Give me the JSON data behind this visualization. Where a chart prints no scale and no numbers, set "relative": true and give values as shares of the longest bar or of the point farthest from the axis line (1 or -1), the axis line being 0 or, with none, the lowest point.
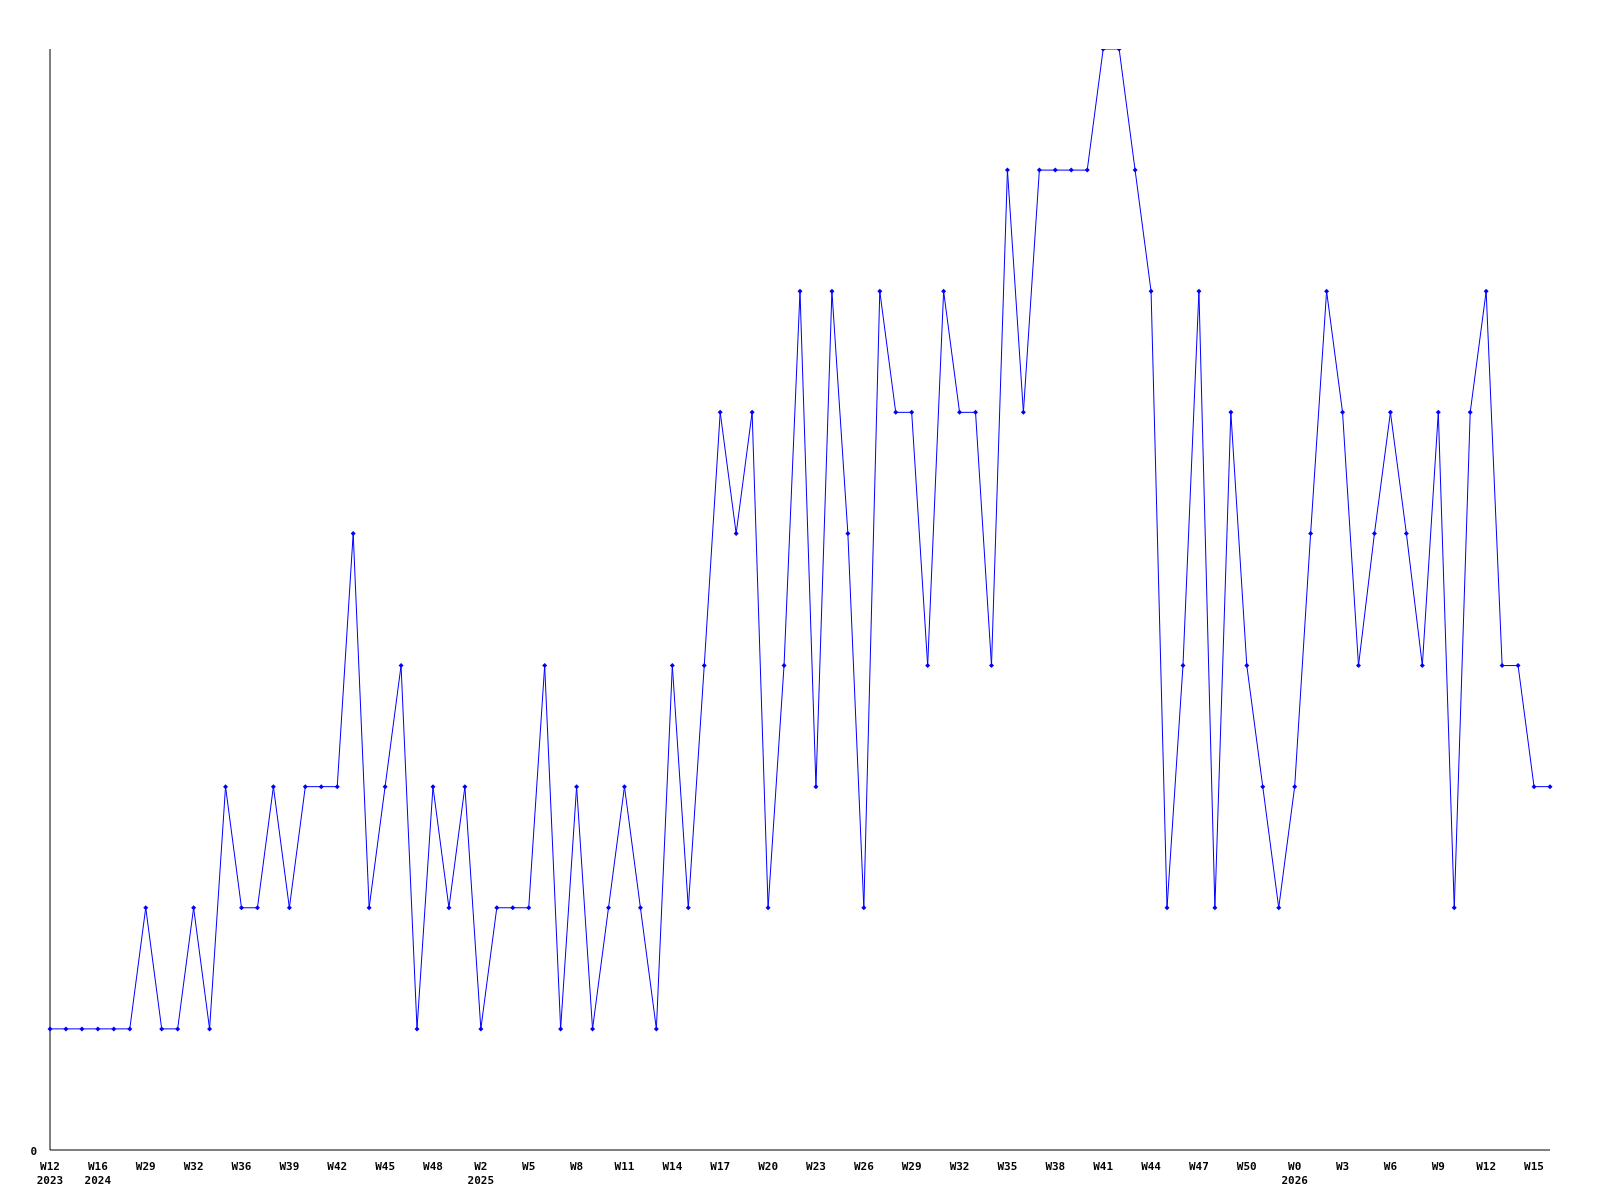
{
  "chart_data": {
    "type": "line",
    "relative": true,
    "marker": "diamond",
    "line_style": "solid",
    "grid": false,
    "legend": false,
    "annotations": [
      "0"
    ],
    "categories": [
      "W12 2023",
      null,
      null,
      "W16 2024",
      null,
      null,
      "W29",
      null,
      null,
      "W32",
      null,
      null,
      "W36",
      null,
      null,
      "W39",
      null,
      null,
      "W42",
      null,
      null,
      "W45",
      null,
      null,
      "W48",
      null,
      null,
      "W2 2025",
      null,
      null,
      "W5",
      null,
      null,
      "W8",
      null,
      null,
      "W11",
      null,
      null,
      "W14",
      null,
      null,
      "W17",
      null,
      null,
      "W20",
      null,
      null,
      "W23",
      null,
      null,
      "W26",
      null,
      null,
      "W29",
      null,
      null,
      "W32",
      null,
      null,
      "W35",
      null,
      null,
      "W38",
      null,
      null,
      "W41",
      null,
      null,
      "W44",
      null,
      null,
      "W47",
      null,
      null,
      "W50",
      null,
      null,
      "W0 2026",
      null,
      null,
      "W3",
      null,
      null,
      "W6",
      null,
      null,
      "W9",
      null,
      null,
      "W12",
      null,
      null,
      "W15",
      null
    ],
    "series": [
      {
        "color": "#0000ff",
        "values": [
          0.11,
          0.11,
          0.11,
          0.11,
          0.11,
          0.11,
          0.22,
          0.11,
          0.11,
          0.22,
          0.11,
          0.33,
          0.22,
          0.22,
          0.33,
          0.22,
          0.33,
          0.33,
          0.33,
          0.56,
          0.22,
          0.33,
          0.44,
          0.11,
          0.33,
          0.22,
          0.33,
          0.11,
          0.22,
          0.22,
          0.22,
          0.44,
          0.11,
          0.33,
          0.11,
          0.22,
          0.33,
          0.22,
          0.11,
          0.44,
          0.22,
          0.44,
          0.67,
          0.56,
          0.67,
          0.22,
          0.44,
          0.78,
          0.33,
          0.78,
          0.56,
          0.22,
          0.78,
          0.67,
          0.67,
          0.44,
          0.78,
          0.67,
          0.67,
          0.44,
          0.89,
          0.67,
          0.89,
          0.89,
          0.89,
          0.89,
          1,
          1,
          0.89,
          0.78,
          0.22,
          0.44,
          0.78,
          0.22,
          0.67,
          0.44,
          0.33,
          0.22,
          0.33,
          0.56,
          0.78,
          0.67,
          0.44,
          0.56,
          0.67,
          0.56,
          0.44,
          0.67,
          0.22,
          0.67,
          0.78,
          0.44,
          0.44,
          0.33,
          0.33
        ]
      }
    ]
  }
}
